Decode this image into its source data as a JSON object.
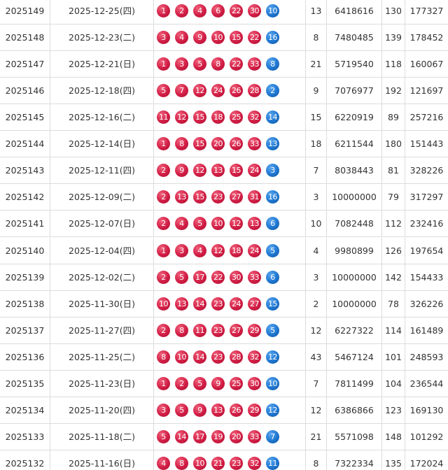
{
  "table": {
    "rows": [
      {
        "issue": 2025149,
        "date": "2025-12-25(四)",
        "red": [
          1,
          2,
          4,
          6,
          22,
          30
        ],
        "blue": 10,
        "c4": 13,
        "c5": 6418616,
        "c6": 130,
        "c7": 177327
      },
      {
        "issue": 2025148,
        "date": "2025-12-23(二)",
        "red": [
          3,
          4,
          9,
          10,
          15,
          22
        ],
        "blue": 16,
        "c4": 8,
        "c5": 7480485,
        "c6": 139,
        "c7": 178452
      },
      {
        "issue": 2025147,
        "date": "2025-12-21(日)",
        "red": [
          1,
          3,
          5,
          8,
          22,
          33
        ],
        "blue": 8,
        "c4": 21,
        "c5": 5719540,
        "c6": 118,
        "c7": 160067
      },
      {
        "issue": 2025146,
        "date": "2025-12-18(四)",
        "red": [
          5,
          7,
          12,
          24,
          26,
          28
        ],
        "blue": 2,
        "c4": 9,
        "c5": 7076977,
        "c6": 192,
        "c7": 121697
      },
      {
        "issue": 2025145,
        "date": "2025-12-16(二)",
        "red": [
          11,
          12,
          15,
          18,
          25,
          32
        ],
        "blue": 14,
        "c4": 15,
        "c5": 6220919,
        "c6": 89,
        "c7": 257216
      },
      {
        "issue": 2025144,
        "date": "2025-12-14(日)",
        "red": [
          1,
          8,
          15,
          20,
          26,
          33
        ],
        "blue": 13,
        "c4": 18,
        "c5": 6211544,
        "c6": 180,
        "c7": 151443
      },
      {
        "issue": 2025143,
        "date": "2025-12-11(四)",
        "red": [
          2,
          9,
          12,
          13,
          15,
          24
        ],
        "blue": 3,
        "c4": 7,
        "c5": 8038443,
        "c6": 81,
        "c7": 328226
      },
      {
        "issue": 2025142,
        "date": "2025-12-09(二)",
        "red": [
          2,
          13,
          15,
          23,
          27,
          31
        ],
        "blue": 16,
        "c4": 3,
        "c5": 10000000,
        "c6": 79,
        "c7": 317297
      },
      {
        "issue": 2025141,
        "date": "2025-12-07(日)",
        "red": [
          2,
          4,
          5,
          10,
          12,
          13
        ],
        "blue": 6,
        "c4": 10,
        "c5": 7082448,
        "c6": 112,
        "c7": 232416
      },
      {
        "issue": 2025140,
        "date": "2025-12-04(四)",
        "red": [
          1,
          3,
          4,
          12,
          18,
          24
        ],
        "blue": 5,
        "c4": 4,
        "c5": 9980899,
        "c6": 126,
        "c7": 197654
      },
      {
        "issue": 2025139,
        "date": "2025-12-02(二)",
        "red": [
          2,
          5,
          17,
          22,
          30,
          33
        ],
        "blue": 6,
        "c4": 3,
        "c5": 10000000,
        "c6": 142,
        "c7": 154433
      },
      {
        "issue": 2025138,
        "date": "2025-11-30(日)",
        "red": [
          10,
          13,
          14,
          23,
          24,
          27
        ],
        "blue": 15,
        "c4": 2,
        "c5": 10000000,
        "c6": 78,
        "c7": 326226
      },
      {
        "issue": 2025137,
        "date": "2025-11-27(四)",
        "red": [
          2,
          8,
          11,
          23,
          27,
          29
        ],
        "blue": 5,
        "c4": 12,
        "c5": 6227322,
        "c6": 114,
        "c7": 161489
      },
      {
        "issue": 2025136,
        "date": "2025-11-25(二)",
        "red": [
          8,
          10,
          14,
          23,
          28,
          32
        ],
        "blue": 12,
        "c4": 43,
        "c5": 5467124,
        "c6": 101,
        "c7": 248593
      },
      {
        "issue": 2025135,
        "date": "2025-11-23(日)",
        "red": [
          1,
          2,
          5,
          9,
          25,
          30
        ],
        "blue": 10,
        "c4": 7,
        "c5": 7811499,
        "c6": 104,
        "c7": 236544
      },
      {
        "issue": 2025134,
        "date": "2025-11-20(四)",
        "red": [
          3,
          5,
          9,
          13,
          26,
          29
        ],
        "blue": 12,
        "c4": 12,
        "c5": 6386866,
        "c6": 123,
        "c7": 169130
      },
      {
        "issue": 2025133,
        "date": "2025-11-18(二)",
        "red": [
          5,
          14,
          17,
          19,
          20,
          33
        ],
        "blue": 7,
        "c4": 21,
        "c5": 5571098,
        "c6": 148,
        "c7": 101292
      },
      {
        "issue": 2025132,
        "date": "2025-11-16(日)",
        "red": [
          4,
          8,
          10,
          21,
          23,
          32
        ],
        "blue": 11,
        "c4": 8,
        "c5": 7322334,
        "c6": 135,
        "c7": 172024
      }
    ]
  }
}
